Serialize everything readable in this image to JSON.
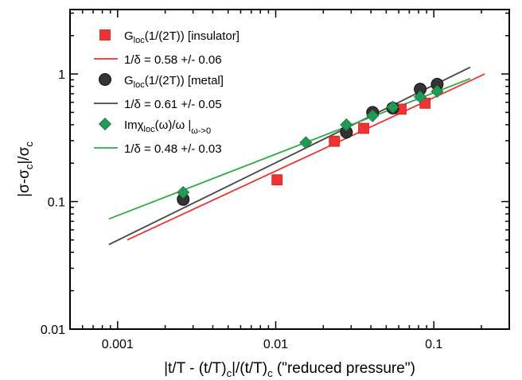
{
  "chart_data": {
    "type": "scatter",
    "title": "",
    "xlabel": "|t/T - (t/T)c|/(t/T)c (\"reduced pressure\")",
    "ylabel": "|σ-σc|/σc",
    "xscale": "log",
    "yscale": "log",
    "xlim": [
      0.0005,
      0.3
    ],
    "ylim": [
      0.01,
      3.2
    ],
    "grid": false,
    "legend_position": "top-left",
    "x_ticks": [
      {
        "value": 0.001,
        "label": "0.001"
      },
      {
        "value": 0.01,
        "label": "0.01"
      },
      {
        "value": 0.1,
        "label": "0.1"
      }
    ],
    "y_ticks": [
      {
        "value": 0.01,
        "label": "0.01"
      },
      {
        "value": 0.1,
        "label": "0.1"
      },
      {
        "value": 1,
        "label": "1"
      }
    ],
    "series": [
      {
        "name": "Gloc(1/(2T)) [insulator]",
        "kind": "points",
        "marker": "square",
        "color": "#ee3333",
        "x": [
          0.0102,
          0.0235,
          0.036,
          0.062,
          0.088
        ],
        "y": [
          0.148,
          0.297,
          0.375,
          0.53,
          0.59
        ]
      },
      {
        "name": "1/δ = 0.58 +/- 0.06",
        "kind": "fit",
        "color": "#ee3333",
        "x": [
          0.00115,
          0.21
        ],
        "y": [
          0.05,
          1.0
        ]
      },
      {
        "name": "Gloc(1/(2T)) [metal]",
        "kind": "points",
        "marker": "circle",
        "color": "#333333",
        "x": [
          0.0026,
          0.028,
          0.041,
          0.055,
          0.082,
          0.105
        ],
        "y": [
          0.104,
          0.35,
          0.5,
          0.54,
          0.76,
          0.83
        ]
      },
      {
        "name": "1/δ = 0.61 +/- 0.05",
        "kind": "fit",
        "color": "#444444",
        "x": [
          0.00088,
          0.17
        ],
        "y": [
          0.046,
          1.13
        ]
      },
      {
        "name": "Imχloc(ω)/ω |ω->0",
        "kind": "points",
        "marker": "diamond",
        "color": "#229955",
        "x": [
          0.0026,
          0.0155,
          0.028,
          0.041,
          0.055,
          0.082,
          0.105
        ],
        "y": [
          0.118,
          0.29,
          0.4,
          0.47,
          0.55,
          0.66,
          0.73
        ]
      },
      {
        "name": "1/δ = 0.48 +/- 0.03",
        "kind": "fit",
        "color": "#33aa44",
        "x": [
          0.00088,
          0.17
        ],
        "y": [
          0.073,
          0.92
        ]
      }
    ],
    "legend_text": [
      {
        "main": "G",
        "sub": "loc",
        "tail": "(1/(2T)) [insulator]"
      },
      {
        "main": "1/δ = 0.58 +/- 0.06",
        "sub": "",
        "tail": ""
      },
      {
        "main": "G",
        "sub": "loc",
        "tail": "(1/(2T)) [metal]"
      },
      {
        "main": "1/δ = 0.61 +/- 0.05",
        "sub": "",
        "tail": ""
      },
      {
        "main": "Imχ",
        "sub": "loc",
        "tail": "(ω)/ω |",
        "sub2": "ω->0"
      },
      {
        "main": "1/δ = 0.48 +/- 0.03",
        "sub": "",
        "tail": ""
      }
    ],
    "axis_text": {
      "y": {
        "a": "|σ-σ",
        "b": "c",
        "c": "|/σ",
        "d": "c"
      },
      "x": {
        "a": "|t/T - (t/T)",
        "b": "c",
        "c": "|/(t/T)",
        "d": "c",
        "e": " (\"reduced pressure\")"
      }
    }
  }
}
